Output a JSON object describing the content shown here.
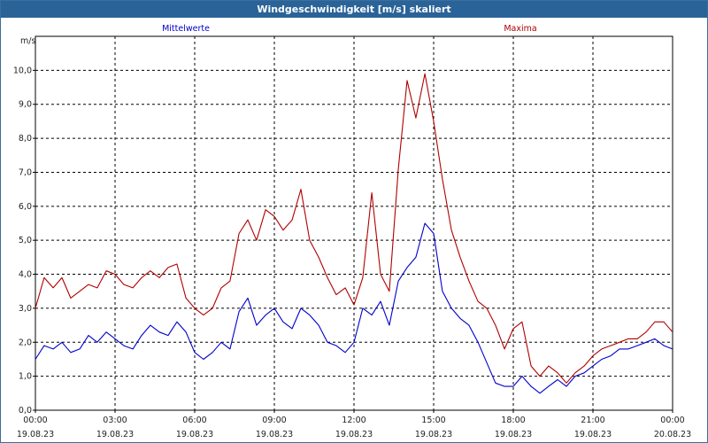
{
  "window": {
    "title": "Windgeschwindigkeit [m/s] skaliert"
  },
  "chart_data": {
    "type": "line",
    "title": "Windgeschwindigkeit [m/s] skaliert",
    "ylabel": "m/s",
    "ylim": [
      0,
      11
    ],
    "xlim_hours": [
      0,
      24
    ],
    "grid": true,
    "yticks": [
      "0,0",
      "1,0",
      "2,0",
      "3,0",
      "4,0",
      "5,0",
      "6,0",
      "7,0",
      "8,0",
      "9,0",
      "10,0"
    ],
    "xticks": [
      {
        "time": "00:00",
        "date": "19.08.23"
      },
      {
        "time": "03:00",
        "date": "19.08.23"
      },
      {
        "time": "06:00",
        "date": "19.08.23"
      },
      {
        "time": "09:00",
        "date": "19.08.23"
      },
      {
        "time": "12:00",
        "date": "19.08.23"
      },
      {
        "time": "15:00",
        "date": "19.08.23"
      },
      {
        "time": "18:00",
        "date": "19.08.23"
      },
      {
        "time": "21:00",
        "date": "19.08.23"
      },
      {
        "time": "00:00",
        "date": "20.08.23"
      }
    ],
    "series": [
      {
        "name": "Mittelwerte",
        "color": "#0000cc",
        "x_hours": [
          0.0,
          0.33,
          0.67,
          1.0,
          1.33,
          1.67,
          2.0,
          2.33,
          2.67,
          3.0,
          3.33,
          3.67,
          4.0,
          4.33,
          4.67,
          5.0,
          5.33,
          5.67,
          6.0,
          6.33,
          6.67,
          7.0,
          7.33,
          7.67,
          8.0,
          8.33,
          8.67,
          9.0,
          9.33,
          9.67,
          10.0,
          10.33,
          10.67,
          11.0,
          11.33,
          11.67,
          12.0,
          12.33,
          12.67,
          13.0,
          13.33,
          13.67,
          14.0,
          14.33,
          14.67,
          15.0,
          15.33,
          15.67,
          16.0,
          16.33,
          16.67,
          17.0,
          17.33,
          17.67,
          18.0,
          18.33,
          18.67,
          19.0,
          19.33,
          19.67,
          20.0,
          20.33,
          20.67,
          21.0,
          21.33,
          21.67,
          22.0,
          22.33,
          22.67,
          23.0,
          23.33,
          23.67,
          24.0
        ],
        "values": [
          1.5,
          1.9,
          1.8,
          2.0,
          1.7,
          1.8,
          2.2,
          2.0,
          2.3,
          2.1,
          1.9,
          1.8,
          2.2,
          2.5,
          2.3,
          2.2,
          2.6,
          2.3,
          1.7,
          1.5,
          1.7,
          2.0,
          1.8,
          2.9,
          3.3,
          2.5,
          2.8,
          3.0,
          2.6,
          2.4,
          3.0,
          2.8,
          2.5,
          2.0,
          1.9,
          1.7,
          2.0,
          3.0,
          2.8,
          3.2,
          2.5,
          3.8,
          4.2,
          4.5,
          5.5,
          5.2,
          3.5,
          3.0,
          2.7,
          2.5,
          2.0,
          1.4,
          0.8,
          0.7,
          0.7,
          1.0,
          0.7,
          0.5,
          0.7,
          0.9,
          0.7,
          1.0,
          1.1,
          1.3,
          1.5,
          1.6,
          1.8,
          1.8,
          1.9,
          2.0,
          2.1,
          1.9,
          1.8
        ]
      },
      {
        "name": "Maxima",
        "color": "#b00000",
        "x_hours": [
          0.0,
          0.33,
          0.67,
          1.0,
          1.33,
          1.67,
          2.0,
          2.33,
          2.67,
          3.0,
          3.33,
          3.67,
          4.0,
          4.33,
          4.67,
          5.0,
          5.33,
          5.67,
          6.0,
          6.33,
          6.67,
          7.0,
          7.33,
          7.67,
          8.0,
          8.33,
          8.67,
          9.0,
          9.33,
          9.67,
          10.0,
          10.33,
          10.67,
          11.0,
          11.33,
          11.67,
          12.0,
          12.33,
          12.67,
          13.0,
          13.33,
          13.67,
          14.0,
          14.33,
          14.67,
          15.0,
          15.33,
          15.67,
          16.0,
          16.33,
          16.67,
          17.0,
          17.33,
          17.67,
          18.0,
          18.33,
          18.67,
          19.0,
          19.33,
          19.67,
          20.0,
          20.33,
          20.67,
          21.0,
          21.33,
          21.67,
          22.0,
          22.33,
          22.67,
          23.0,
          23.33,
          23.67,
          24.0
        ],
        "values": [
          3.0,
          3.9,
          3.6,
          3.9,
          3.3,
          3.5,
          3.7,
          3.6,
          4.1,
          4.0,
          3.7,
          3.6,
          3.9,
          4.1,
          3.9,
          4.2,
          4.3,
          3.3,
          3.0,
          2.8,
          3.0,
          3.6,
          3.8,
          5.2,
          5.6,
          5.0,
          5.9,
          5.7,
          5.3,
          5.6,
          6.5,
          5.0,
          4.5,
          3.9,
          3.4,
          3.6,
          3.1,
          3.9,
          6.4,
          4.0,
          3.5,
          7.1,
          9.7,
          8.6,
          9.9,
          8.5,
          6.8,
          5.3,
          4.5,
          3.8,
          3.2,
          3.0,
          2.5,
          1.8,
          2.4,
          2.6,
          1.3,
          1.0,
          1.3,
          1.1,
          0.8,
          1.1,
          1.3,
          1.6,
          1.8,
          1.9,
          2.0,
          2.1,
          2.1,
          2.3,
          2.6,
          2.6,
          2.3
        ]
      }
    ]
  }
}
